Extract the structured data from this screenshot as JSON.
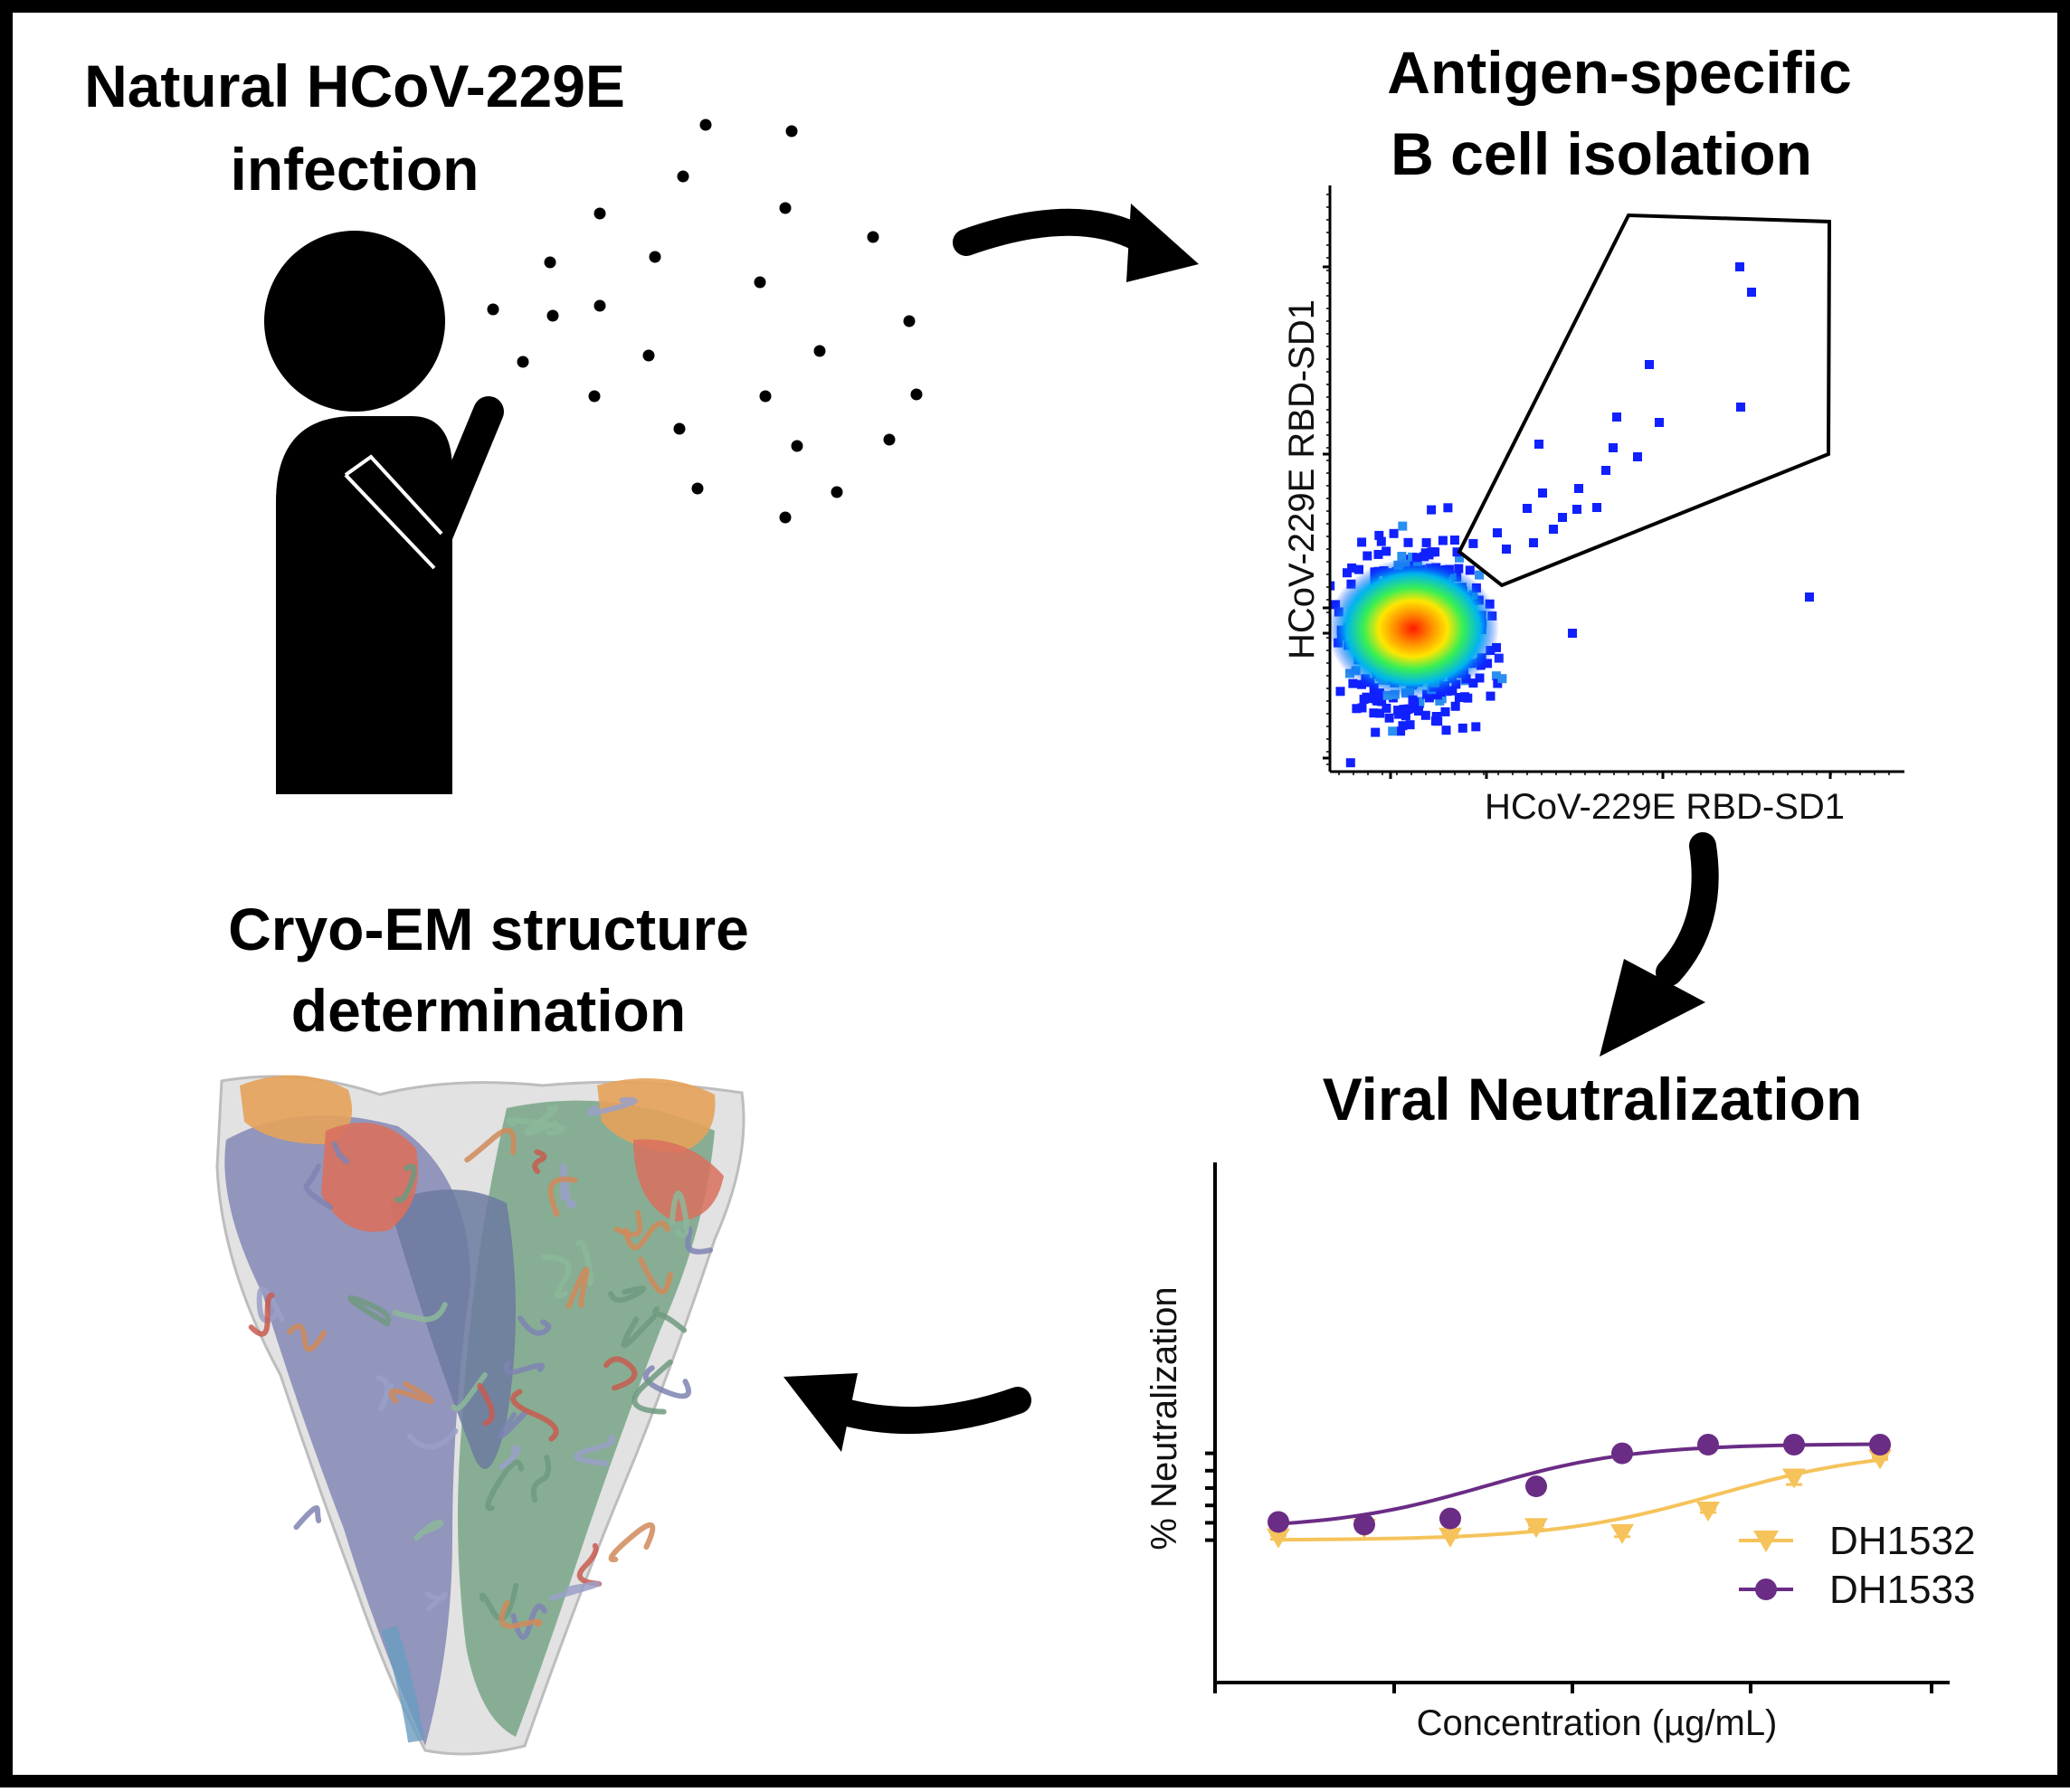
{
  "panels": {
    "infection": {
      "title_line1": "Natural HCoV-229E",
      "title_line2": "infection"
    },
    "isolation": {
      "title_line1": "Antigen-specific",
      "title_line2": "B cell isolation"
    },
    "neutralization": {
      "title": "Viral Neutralization"
    },
    "cryoem": {
      "title_line1": "Cryo-EM structure",
      "title_line2": "determination"
    }
  },
  "flow": {
    "x_label": "HCoV-229E RBD-SD1",
    "y_label": "HCoV-229E RBD-SD1"
  },
  "chart_data": {
    "type": "line",
    "xlabel": "Concentration (µg/mL)",
    "ylabel": "% Neutralization",
    "x": [
      1,
      2,
      3,
      4,
      5,
      6,
      7,
      8
    ],
    "ylim": [
      -20,
      110
    ],
    "series": [
      {
        "name": "DH1532",
        "color": "#f5c35a",
        "marker": "triangle-down",
        "x": [
          1,
          2,
          3,
          4,
          5,
          6,
          7,
          8
        ],
        "values": [
          -7,
          4,
          -6,
          5,
          -2,
          24,
          62,
          84
        ],
        "errors": [
          2,
          1,
          1,
          2,
          4,
          2,
          8,
          1
        ]
      },
      {
        "name": "DH1533",
        "color": "#6a2c85",
        "marker": "circle",
        "x": [
          1,
          2,
          3,
          4,
          5,
          6,
          7,
          8
        ],
        "values": [
          11,
          8,
          15,
          52,
          90,
          100,
          100,
          100
        ],
        "errors": [
          2,
          2,
          3,
          2,
          3,
          0,
          0,
          0
        ]
      }
    ]
  },
  "colors": {
    "dh1532": "#f5c35a",
    "dh1533": "#6a2c85",
    "border": "#000000"
  }
}
